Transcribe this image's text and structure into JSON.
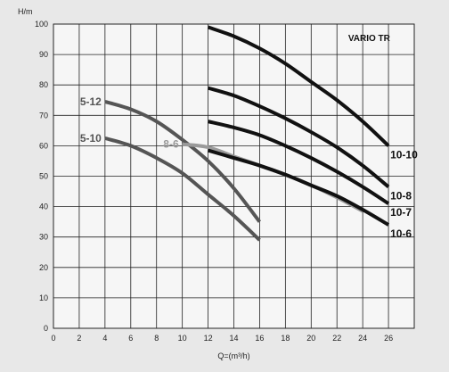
{
  "chart_data": {
    "type": "line",
    "title": "VARIO TR",
    "xlabel": "Q=(m³/h)",
    "ylabel": "H/m",
    "xlim": [
      0,
      28
    ],
    "ylim": [
      0,
      100
    ],
    "x_ticks": [
      0,
      2,
      4,
      6,
      8,
      10,
      12,
      14,
      16,
      18,
      20,
      22,
      24,
      26
    ],
    "y_ticks": [
      0,
      10,
      20,
      30,
      40,
      50,
      60,
      70,
      80,
      90,
      100
    ],
    "grid": true,
    "series": [
      {
        "name": "5-12",
        "color": "#555555",
        "label_side": "left",
        "x": [
          4,
          6,
          8,
          10,
          12,
          14,
          16
        ],
        "y": [
          74.5,
          72,
          68,
          62,
          55,
          46,
          35
        ]
      },
      {
        "name": "5-10",
        "color": "#555555",
        "label_side": "left",
        "x": [
          4,
          6,
          8,
          10,
          12,
          14,
          16
        ],
        "y": [
          62.5,
          60,
          56,
          51,
          44,
          37,
          29
        ]
      },
      {
        "name": "8-6",
        "color": "#9a9a9a",
        "label_side": "left",
        "x": [
          10,
          12,
          14,
          16,
          18,
          20,
          22,
          24
        ],
        "y": [
          60.5,
          59.5,
          56.5,
          53.5,
          50.5,
          47,
          43,
          38.5
        ]
      },
      {
        "name": "10-10",
        "color": "#111111",
        "label_side": "right",
        "x": [
          12,
          14,
          16,
          18,
          20,
          22,
          24,
          26
        ],
        "y": [
          99,
          96,
          92,
          87,
          81,
          75,
          68,
          60
        ]
      },
      {
        "name": "10-8",
        "color": "#111111",
        "label_side": "right",
        "x": [
          12,
          14,
          16,
          18,
          20,
          22,
          24,
          26
        ],
        "y": [
          79,
          76.5,
          73,
          69,
          64.5,
          59.5,
          53.5,
          46.5
        ]
      },
      {
        "name": "10-7",
        "color": "#111111",
        "label_side": "right",
        "x": [
          12,
          14,
          16,
          18,
          20,
          22,
          24,
          26
        ],
        "y": [
          68,
          66,
          63.5,
          60,
          56,
          51.5,
          46.5,
          41
        ]
      },
      {
        "name": "10-6",
        "color": "#111111",
        "label_side": "right",
        "x": [
          12,
          14,
          16,
          18,
          20,
          22,
          24,
          26
        ],
        "y": [
          58.5,
          56,
          53.5,
          50.5,
          47,
          43.5,
          39,
          34
        ]
      }
    ]
  }
}
